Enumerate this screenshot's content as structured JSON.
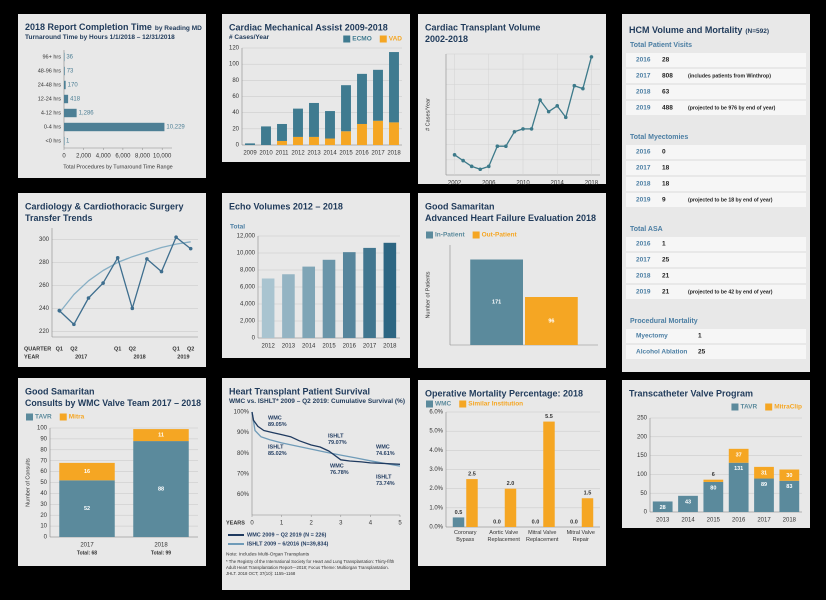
{
  "chart_data": [
    {
      "type": "bar",
      "orientation": "horizontal",
      "title": [
        "2018 Report Completion Time"
      ],
      "title_suffix": "by Reading MD",
      "subtitle": "Turnaround Time by Hours 1/1/2018 – 12/31/2018",
      "categories": [
        "96+ hrs",
        "48-96 hrs",
        "24-48 hrs",
        "12-24 hrs",
        "4-12 hrs",
        "0-4 hrs",
        "<0 hrs"
      ],
      "values": [
        36,
        73,
        170,
        418,
        1286,
        10229,
        1
      ],
      "value_labels": [
        "36",
        "73",
        "170",
        "418",
        "1,286",
        "10,229",
        "1"
      ],
      "color": "#4d7f95",
      "xlim": [
        0,
        11000
      ],
      "xticks": [
        0,
        {
          "value": 2000,
          "label": "2,000"
        },
        {
          "value": 4000,
          "label": "4,000"
        },
        {
          "value": 6000,
          "label": "6,000"
        },
        {
          "value": 8000,
          "label": "8,000"
        },
        {
          "value": 10000,
          "label": "10,000"
        }
      ],
      "x_label": "Total Procedures by Turnaround Time Range"
    },
    {
      "type": "bar",
      "stacked": true,
      "title": [
        "Cardiac Mechanical Assist 2009-2018"
      ],
      "subtitle": "# Cases/Year",
      "categories": [
        "2009",
        "2010",
        "2011",
        "2012",
        "2013",
        "2014",
        "2015",
        "2016",
        "2017",
        "2018"
      ],
      "series": [
        {
          "name": "VAD",
          "color": "#f5a623",
          "values": [
            0,
            0,
            5,
            10,
            10,
            8,
            17,
            26,
            30,
            28
          ]
        },
        {
          "name": "ECMO",
          "color": "#3f7b90",
          "values": [
            2,
            23,
            21,
            35,
            42,
            34,
            57,
            62,
            63,
            87
          ]
        }
      ],
      "ylim": [
        0,
        120
      ],
      "yticks": [
        0,
        20,
        40,
        60,
        80,
        100,
        120
      ],
      "grid": true,
      "legend": "top-right",
      "legend_reversed": true
    },
    {
      "type": "line",
      "title": [
        "Cardiac Transplant Volume",
        "2002-2018"
      ],
      "y_label": "# Cases/Year",
      "x": [
        2002,
        2003,
        2004,
        2005,
        2006,
        2007,
        2008,
        2009,
        2010,
        2011,
        2012,
        2013,
        2014,
        2015,
        2016,
        2017,
        2018
      ],
      "values": [
        5,
        3,
        1,
        0,
        1,
        8,
        8,
        13,
        14,
        14,
        24,
        20,
        22,
        18,
        29,
        28,
        39
      ],
      "color": "#3d7a8a",
      "markers": true,
      "xlim": [
        2001,
        2019
      ],
      "xticks": [
        2002,
        2006,
        2010,
        2014,
        2018
      ],
      "ylim": [
        -2,
        40
      ],
      "grid": true
    },
    {
      "type": "line",
      "title": [
        "Cardiology & Cardiothoracic Surgery",
        "Transfer Trends"
      ],
      "categories": [
        "Q1",
        "Q2",
        null,
        null,
        "Q1",
        "Q2",
        null,
        null,
        "Q1",
        "Q2"
      ],
      "x_groups": [
        "2017",
        "2018",
        "2019"
      ],
      "x_label": "QUARTER",
      "group_label": "YEAR",
      "series": [
        {
          "color": "#3e6e8e",
          "markers": true,
          "values": [
            238,
            226,
            249,
            262,
            284,
            240,
            283,
            272,
            302,
            292
          ]
        },
        {
          "color": "#86aec4",
          "values": [
            236,
            252,
            264,
            273,
            280,
            285,
            289,
            293,
            296,
            298
          ]
        }
      ],
      "ylim": [
        215,
        310
      ],
      "yticks": [
        220,
        240,
        260,
        280,
        300
      ],
      "grid": true
    },
    {
      "type": "bar",
      "title": [
        "Echo Volumes 2012 – 2018"
      ],
      "y_label": "Total",
      "categories": [
        "2012",
        "2013",
        "2014",
        "2015",
        "2016",
        "2017",
        "2018"
      ],
      "values": [
        7000,
        7500,
        8400,
        9200,
        10100,
        10600,
        11200
      ],
      "colors": [
        "#a9c4d0",
        "#94b4c3",
        "#7fa5b6",
        "#6a95a9",
        "#56859c",
        "#41768f",
        "#2d6682"
      ],
      "ylim": [
        0,
        12000
      ],
      "yticks": [
        0,
        {
          "value": 2000,
          "label": "2,000"
        },
        {
          "value": 4000,
          "label": "4,000"
        },
        {
          "value": 6000,
          "label": "6,000"
        },
        {
          "value": 8000,
          "label": "8,000"
        },
        {
          "value": 10000,
          "label": "10,000"
        },
        {
          "value": 12000,
          "label": "12,000"
        }
      ],
      "grid": true
    },
    {
      "type": "bar",
      "title": [
        "Good Samaritan",
        "Advanced Heart Failure Evaluation 2018"
      ],
      "y_label": "Number of Patients",
      "series": [
        {
          "name": "In-Patient",
          "color": "#5b8a9c",
          "values": [
            171
          ]
        },
        {
          "name": "Out-Patient",
          "color": "#f5a623",
          "values": [
            96
          ]
        }
      ],
      "ylim": [
        0,
        200
      ],
      "legend": "top-left",
      "value_labels_pos": "inside"
    },
    {
      "type": "bar",
      "stacked": true,
      "title": [
        "Good Samaritan",
        "Consults by WMC Valve Team 2017 – 2018"
      ],
      "y_label": "Number of Consults",
      "categories": [
        "2017",
        "2018"
      ],
      "category_notes": [
        "Total: 68",
        "Total: 99"
      ],
      "series": [
        {
          "name": "TAVR",
          "color": "#5b8a9c",
          "values": [
            52,
            88
          ]
        },
        {
          "name": "Mitra",
          "color": "#f5a623",
          "values": [
            16,
            11
          ]
        }
      ],
      "ylim": [
        0,
        100
      ],
      "yticks": [
        0,
        10,
        20,
        30,
        40,
        50,
        60,
        70,
        80,
        90,
        100
      ],
      "grid": true,
      "legend": "top-left",
      "value_labels_pos": "inside"
    },
    {
      "type": "line",
      "title": [
        "Heart Transplant Patient Survival"
      ],
      "subtitle": "WMC vs. ISHLT* 2009 – Q2 2019: Cumulative Survival (%)",
      "x_label": "YEARS",
      "xlim": [
        0,
        5
      ],
      "xticks": [
        0,
        1,
        2,
        3,
        4,
        5
      ],
      "ylim": [
        50,
        100
      ],
      "yticks": [
        {
          "value": 60,
          "label": "60%"
        },
        {
          "value": 70,
          "label": "70%"
        },
        {
          "value": 80,
          "label": "80%"
        },
        {
          "value": 90,
          "label": "90%"
        },
        {
          "value": 100,
          "label": "100%"
        }
      ],
      "series": [
        {
          "name": "WMC 2009 – Q2 2019 (N = 226)",
          "color": "#1f3a5f",
          "x": [
            0,
            0.05,
            0.2,
            0.4,
            0.7,
            1,
            1.3,
            1.6,
            2,
            2.3,
            2.6,
            3,
            3.3,
            3.7,
            4,
            4.5,
            5
          ],
          "values": [
            100,
            96,
            93,
            91,
            90,
            89.05,
            88,
            86,
            84,
            83,
            81,
            76.78,
            76.2,
            75.8,
            75.3,
            75,
            74.61
          ]
        },
        {
          "name": "ISHLT 2009 – 6/2016 (N=39,834)",
          "color": "#6f9bb8",
          "x": [
            0,
            0.1,
            0.3,
            0.6,
            1,
            1.5,
            2,
            2.5,
            3,
            3.5,
            4,
            4.5,
            5
          ],
          "values": [
            100,
            91,
            88,
            86.5,
            85.02,
            83.5,
            82,
            80.5,
            79.07,
            77.7,
            76.3,
            75,
            73.74
          ]
        }
      ],
      "annotations": [
        {
          "text": [
            "WMC",
            "89.05%"
          ]
        },
        {
          "text": [
            "ISHLT",
            "85.02%"
          ]
        },
        {
          "text": [
            "ISHLT",
            "79.07%"
          ]
        },
        {
          "text": [
            "WMC",
            "76.78%"
          ]
        },
        {
          "text": [
            "WMC",
            "74.61%"
          ]
        },
        {
          "text": [
            "ISHLT",
            "73.74%"
          ]
        }
      ],
      "legend": "bottom",
      "note": "Note: Includes Multi-Organ Transplants",
      "footnote": [
        "* The Registry of the International Society for Heart and Lung Transplantation: Thirty-fifth",
        "Adult Heart Transplantation Report—2018; Focus Theme: Multiorgan Transplantation.",
        "JHLT. 2018 OCT; 37(10): 1155–1168"
      ]
    },
    {
      "type": "bar",
      "title": [
        "Operative Mortality Percentage: 2018"
      ],
      "categories": [
        "Coronary Bypass",
        "Aortic Valve Replacement",
        "Mitral Valve Replacement",
        "Mitral Valve Repair"
      ],
      "series": [
        {
          "name": "WMC",
          "color": "#5b8a9c",
          "values": [
            0.5,
            0,
            0,
            0
          ],
          "value_labels": [
            "0.5",
            "0.0",
            "0.0",
            "0.0"
          ]
        },
        {
          "name": "Similar Institution",
          "color": "#f5a623",
          "values": [
            2.5,
            2,
            5.5,
            1.5
          ],
          "value_labels": [
            "2.5",
            "2.0",
            "5.5",
            "1.5"
          ]
        }
      ],
      "ylim": [
        0,
        6
      ],
      "yticks": [
        {
          "value": 0,
          "label": "0.0%"
        },
        {
          "value": 1,
          "label": "1.0%"
        },
        {
          "value": 2,
          "label": "2.0%"
        },
        {
          "value": 3,
          "label": "3.0%"
        },
        {
          "value": 4,
          "label": "4.0%"
        },
        {
          "value": 5,
          "label": "5.0%"
        },
        {
          "value": 6,
          "label": "6.0%"
        }
      ],
      "grid": true,
      "legend": "top-left",
      "value_labels_pos": "above"
    },
    {
      "type": "bar",
      "stacked": true,
      "title": [
        "Transcatheter Valve Program"
      ],
      "categories": [
        "2013",
        "2014",
        "2015",
        "2016",
        "2017",
        "2018"
      ],
      "series": [
        {
          "name": "TAVR",
          "color": "#5b8a9c",
          "values": [
            28,
            43,
            80,
            131,
            89,
            83
          ]
        },
        {
          "name": "MitraClip",
          "color": "#f5a623",
          "values": [
            null,
            null,
            6,
            37,
            31,
            30
          ]
        }
      ],
      "ylim": [
        0,
        250
      ],
      "yticks": [
        0,
        50,
        100,
        150,
        200,
        250
      ],
      "grid": true,
      "legend": "top-right",
      "value_labels_pos": "inside_top"
    }
  ],
  "hcm": {
    "title": "HCM Volume and Mortality",
    "title_suffix": "(N=592)",
    "sections": [
      {
        "heading": "Total Patient Visits",
        "rows": [
          [
            "2016",
            "28"
          ],
          [
            "2017",
            "808",
            "(includes patients from Winthrop)"
          ],
          [
            "2018",
            "63"
          ],
          [
            "2019",
            "488",
            "(projected to be 976 by end of year)"
          ]
        ]
      },
      {
        "heading": "Total Myectomies",
        "rows": [
          [
            "2016",
            "0"
          ],
          [
            "2017",
            "18"
          ],
          [
            "2018",
            "18"
          ],
          [
            "2019",
            "9",
            "(projected to be 18 by end of year)"
          ]
        ]
      },
      {
        "heading": "Total ASA",
        "rows": [
          [
            "2016",
            "1"
          ],
          [
            "2017",
            "25"
          ],
          [
            "2018",
            "21"
          ],
          [
            "2019",
            "21",
            "(projected to be 42 by end of year)"
          ]
        ]
      },
      {
        "heading": "Procedural Mortality",
        "rows": [
          [
            "Myectomy",
            "1"
          ],
          [
            "Alcohol Ablation",
            "25"
          ]
        ]
      }
    ]
  }
}
